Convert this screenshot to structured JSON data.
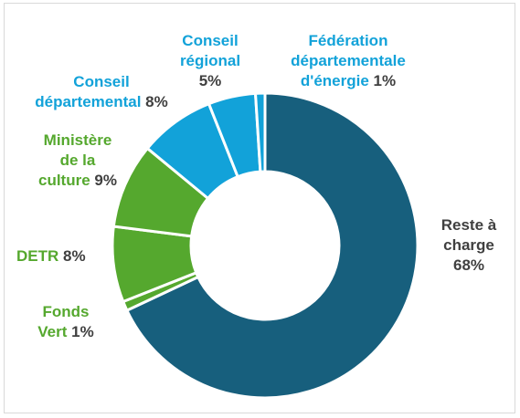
{
  "chart_data": {
    "type": "pie",
    "variant": "donut",
    "title": "",
    "series": [
      {
        "label": "Reste à charge",
        "value": 68,
        "pct": "68%",
        "color": "#175f7d"
      },
      {
        "label": "Fonds Vert",
        "value": 1,
        "pct": "1%",
        "color": "#55a82e"
      },
      {
        "label": "DETR",
        "value": 8,
        "pct": "8%",
        "color": "#55a82e"
      },
      {
        "label": "Ministère de la culture",
        "value": 9,
        "pct": "9%",
        "color": "#55a82e"
      },
      {
        "label": "Conseil départemental",
        "value": 8,
        "pct": "8%",
        "color": "#12a2d9"
      },
      {
        "label": "Conseil régional",
        "value": 5,
        "pct": "5%",
        "color": "#12a2d9"
      },
      {
        "label": "Fédération départementale d'énergie",
        "value": 1,
        "pct": "1%",
        "color": "#12a2d9"
      }
    ],
    "labels": {
      "reste": {
        "l1": "Reste à",
        "l2": "charge",
        "pct": "68%"
      },
      "fonds": {
        "l1": "Fonds",
        "l2": "Vert",
        "pct": "1%"
      },
      "detr": {
        "l1": "DETR",
        "pct": "8%"
      },
      "culture": {
        "l1": "Ministère",
        "l2": "de la",
        "l3": "culture",
        "pct": "9%"
      },
      "dept": {
        "l1": "Conseil",
        "l2": "départemental",
        "pct": "8%"
      },
      "region": {
        "l1": "Conseil",
        "l2": "régional",
        "pct": "5%"
      },
      "fede": {
        "l1": "Fédération",
        "l2": "départementale",
        "l3": "d'énergie",
        "pct": "1%"
      }
    },
    "legend": "none",
    "grid": false
  }
}
